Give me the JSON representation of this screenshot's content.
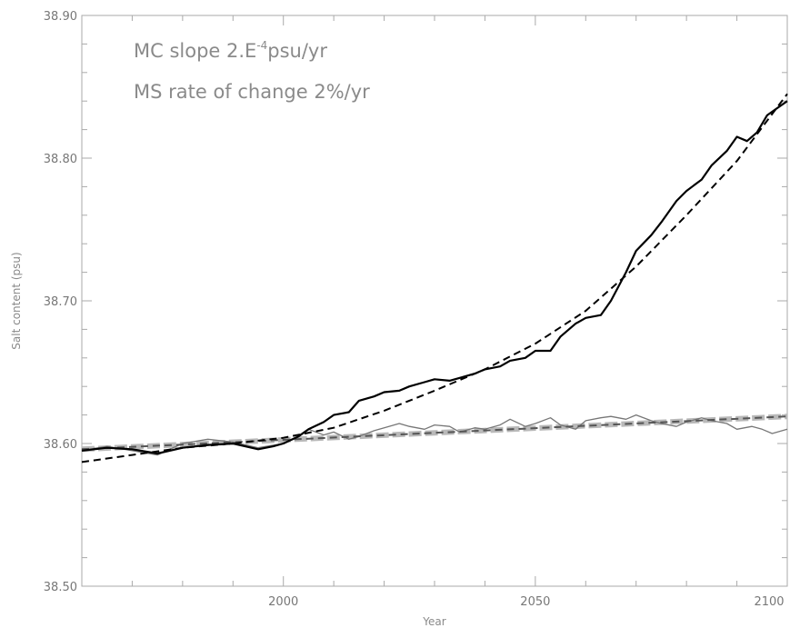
{
  "chart_data": {
    "type": "line",
    "xlabel": "Year",
    "ylabel": "Salt content (psu)",
    "xlim": [
      1960,
      2100
    ],
    "ylim": [
      38.5,
      38.9
    ],
    "x_ticks": [
      2000,
      2050,
      2100
    ],
    "x_tick_labels": [
      "2000",
      "2050",
      "2100"
    ],
    "y_ticks": [
      38.5,
      38.6,
      38.7,
      38.8,
      38.9
    ],
    "y_tick_labels": [
      "38.50",
      "38.60",
      "38.70",
      "38.80",
      "38.90"
    ],
    "grid": false,
    "annotations": [
      {
        "text": "MC slope 2.E⁻⁴psu/yr"
      },
      {
        "text": "MS rate of change 2%/yr"
      }
    ],
    "series": [
      {
        "style": "solid-thick",
        "color": "#000000",
        "x": [
          1960,
          1965,
          1970,
          1975,
          1980,
          1985,
          1990,
          1995,
          1998,
          2000,
          2003,
          2005,
          2008,
          2010,
          2013,
          2015,
          2018,
          2020,
          2023,
          2025,
          2028,
          2030,
          2033,
          2035,
          2038,
          2040,
          2043,
          2045,
          2048,
          2050,
          2053,
          2055,
          2058,
          2060,
          2063,
          2065,
          2068,
          2070,
          2073,
          2075,
          2078,
          2080,
          2083,
          2085,
          2088,
          2090,
          2092,
          2094,
          2096,
          2098,
          2100
        ],
        "y": [
          38.595,
          38.597,
          38.596,
          38.593,
          38.597,
          38.599,
          38.6,
          38.596,
          38.598,
          38.6,
          38.605,
          38.61,
          38.615,
          38.62,
          38.622,
          38.63,
          38.633,
          38.636,
          38.637,
          38.64,
          38.643,
          38.645,
          38.644,
          38.646,
          38.649,
          38.652,
          38.654,
          38.658,
          38.66,
          38.665,
          38.665,
          38.675,
          38.684,
          38.688,
          38.69,
          38.7,
          38.72,
          38.735,
          38.746,
          38.755,
          38.77,
          38.777,
          38.785,
          38.795,
          38.805,
          38.815,
          38.812,
          38.818,
          38.83,
          38.835,
          38.84
        ]
      },
      {
        "style": "dashed",
        "color": "#000000",
        "x": [
          1960,
          1970,
          1980,
          1990,
          2000,
          2010,
          2020,
          2030,
          2040,
          2050,
          2060,
          2070,
          2080,
          2090,
          2100
        ],
        "y": [
          38.587,
          38.592,
          38.597,
          38.6,
          38.604,
          38.611,
          38.623,
          38.637,
          38.652,
          38.67,
          38.693,
          38.724,
          38.76,
          38.798,
          38.845
        ]
      },
      {
        "style": "solid-thin",
        "color": "#777777",
        "x": [
          1960,
          1965,
          1970,
          1975,
          1980,
          1985,
          1990,
          1995,
          2000,
          2003,
          2005,
          2008,
          2010,
          2013,
          2015,
          2018,
          2020,
          2023,
          2025,
          2028,
          2030,
          2033,
          2035,
          2038,
          2040,
          2043,
          2045,
          2048,
          2050,
          2053,
          2055,
          2058,
          2060,
          2063,
          2065,
          2068,
          2070,
          2073,
          2075,
          2078,
          2080,
          2083,
          2085,
          2088,
          2090,
          2093,
          2095,
          2097,
          2100
        ],
        "y": [
          38.595,
          38.598,
          38.595,
          38.592,
          38.6,
          38.603,
          38.601,
          38.597,
          38.6,
          38.605,
          38.61,
          38.606,
          38.608,
          38.603,
          38.605,
          38.609,
          38.611,
          38.614,
          38.612,
          38.61,
          38.613,
          38.612,
          38.608,
          38.611,
          38.61,
          38.613,
          38.617,
          38.612,
          38.614,
          38.618,
          38.613,
          38.61,
          38.616,
          38.618,
          38.619,
          38.617,
          38.62,
          38.616,
          38.614,
          38.612,
          38.615,
          38.618,
          38.616,
          38.614,
          38.61,
          38.612,
          38.61,
          38.607,
          38.61
        ]
      },
      {
        "style": "dashed-wide",
        "color": "#b9b9b9",
        "x": [
          1960,
          2100
        ],
        "y": [
          38.596,
          38.619
        ]
      },
      {
        "style": "dashed",
        "color": "#555555",
        "x": [
          1960,
          2100
        ],
        "y": [
          38.596,
          38.619
        ]
      }
    ]
  }
}
